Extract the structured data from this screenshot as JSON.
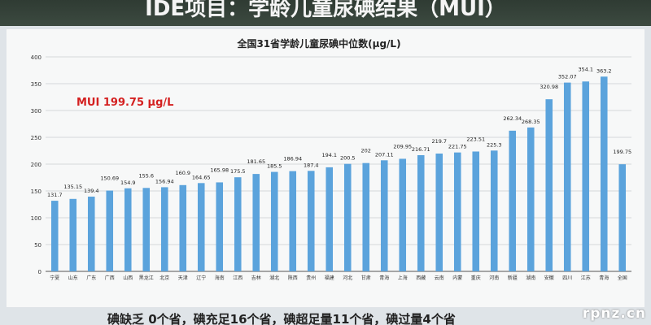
{
  "header": {
    "title": "IDE项目：学龄儿童尿碘结果（MUI）"
  },
  "footer": {
    "summary": "碘缺乏 0个省，碘充足16个省，碘超足量11个省，碘过量4个省"
  },
  "watermark": "rpnz.cn",
  "colors": {
    "bar": "#5ba3dc",
    "annotation": "#d42020",
    "grid": "#c9ccd0",
    "axis": "#555555"
  },
  "chart_data": {
    "type": "bar",
    "title": "全国31省学龄儿童尿碘中位数(μg/L)",
    "annotation": "MUI 199.75 μg/L",
    "ylim": [
      0,
      400
    ],
    "yticks": [
      0,
      50,
      100,
      150,
      200,
      250,
      300,
      350,
      400
    ],
    "grid": true,
    "categories": [
      "宁夏",
      "山东",
      "广东",
      "广西",
      "山西",
      "黑龙江",
      "北京",
      "天津",
      "辽宁",
      "海南",
      "江西",
      "吉林",
      "湖北",
      "陕西",
      "贵州",
      "福建",
      "河北",
      "甘肃",
      "青海",
      "上海",
      "西藏",
      "云南",
      "内蒙",
      "重庆",
      "河南",
      "新疆",
      "湖南",
      "安徽",
      "四川",
      "江苏",
      "青海",
      "全国"
    ],
    "values": [
      131.7,
      135.15,
      139.4,
      150.69,
      154.9,
      155.6,
      156.94,
      160.9,
      164.65,
      165.98,
      175.5,
      181.65,
      185.5,
      186.94,
      187.4,
      194.1,
      200.5,
      202,
      207.11,
      209.95,
      216.71,
      219.7,
      221.75,
      223.51,
      225.3,
      262.34,
      268.35,
      320.98,
      352.07,
      354.1,
      363.2,
      199.75
    ],
    "value_labels": [
      "131.7",
      "135.15",
      "139.4",
      "150.69",
      "154.9",
      "155.6",
      "156.94",
      "160.9",
      "164.65",
      "165.98",
      "175.5",
      "181.65",
      "185.5",
      "186.94",
      "187.4",
      "194.1",
      "200.5",
      "202",
      "207.11",
      "209.95",
      "216.71",
      "219.7",
      "221.75",
      "223.51",
      "225.3",
      "262.34",
      "268.35",
      "320.98",
      "352.07",
      "354.1",
      "363.2",
      "199.75"
    ]
  }
}
